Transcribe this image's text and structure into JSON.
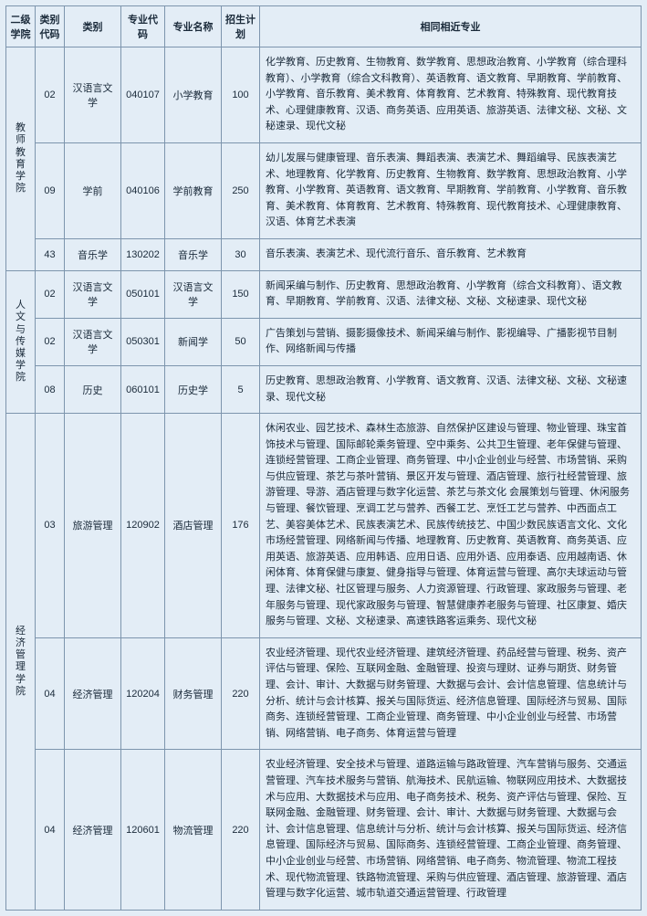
{
  "headers": {
    "school": "二级学院",
    "type_code": "类别代码",
    "type": "类别",
    "major_code": "专业代码",
    "major_name": "专业名称",
    "plan": "招生计划",
    "related": "相同相近专业"
  },
  "schools": [
    {
      "name": "教师教育学院",
      "rows": [
        {
          "type_code": "02",
          "type": "汉语言文学",
          "major_code": "040107",
          "major_name": "小学教育",
          "plan": "100",
          "related": "化学教育、历史教育、生物教育、数学教育、思想政治教育、小学教育（综合理科教育）、小学教育（综合文科教育）、英语教育、语文教育、早期教育、学前教育、小学教育、音乐教育、美术教育、体育教育、艺术教育、特殊教育、现代教育技术、心理健康教育、汉语、商务英语、应用英语、旅游英语、法律文秘、文秘、文秘速录、现代文秘"
        },
        {
          "type_code": "09",
          "type": "学前",
          "major_code": "040106",
          "major_name": "学前教育",
          "plan": "250",
          "related": "幼儿发展与健康管理、音乐表演、舞蹈表演、表演艺术、舞蹈编导、民族表演艺术、地理教育、化学教育、历史教育、生物教育、数学教育、思想政治教育、小学教育、小学教育、英语教育、语文教育、早期教育、学前教育、小学教育、音乐教育、美术教育、体育教育、艺术教育、特殊教育、现代教育技术、心理健康教育、汉语、体育艺术表演"
        },
        {
          "type_code": "43",
          "type": "音乐学",
          "major_code": "130202",
          "major_name": "音乐学",
          "plan": "30",
          "related": "音乐表演、表演艺术、现代流行音乐、音乐教育、艺术教育"
        }
      ]
    },
    {
      "name": "人文与传媒学院",
      "rows": [
        {
          "type_code": "02",
          "type": "汉语言文学",
          "major_code": "050101",
          "major_name": "汉语言文学",
          "plan": "150",
          "related": "新闻采编与制作、历史教育、思想政治教育、小学教育（综合文科教育）、语文教育、早期教育、学前教育、汉语、法律文秘、文秘、文秘速录、现代文秘"
        },
        {
          "type_code": "02",
          "type": "汉语言文学",
          "major_code": "050301",
          "major_name": "新闻学",
          "plan": "50",
          "related": "广告策划与营销、摄影摄像技术、新闻采编与制作、影视编导、广播影视节目制作、网络新闻与传播"
        },
        {
          "type_code": "08",
          "type": "历史",
          "major_code": "060101",
          "major_name": "历史学",
          "plan": "5",
          "related": "历史教育、思想政治教育、小学教育、语文教育、汉语、法律文秘、文秘、文秘速录、现代文秘"
        }
      ]
    },
    {
      "name": "经济管理学院",
      "rows": [
        {
          "type_code": "03",
          "type": "旅游管理",
          "major_code": "120902",
          "major_name": "酒店管理",
          "plan": "176",
          "related": "休闲农业、园艺技术、森林生态旅游、自然保护区建设与管理、物业管理、珠宝首饰技术与管理、国际邮轮乘务管理、空中乘务、公共卫生管理、老年保健与管理、连锁经营管理、工商企业管理、商务管理、中小企业创业与经营、市场营销、采购与供应管理、茶艺与茶叶营销、景区开发与管理、酒店管理、旅行社经营管理、旅游管理、导游、酒店管理与数字化运营、茶艺与茶文化\n会展策划与管理、休闲服务与管理、餐饮管理、烹调工艺与营养、西餐工艺、烹饪工艺与营养、中西面点工艺、美容美体艺术、民族表演艺术、民族传统技艺、中国少数民族语言文化、文化市场经营管理、网络新闻与传播、地理教育、历史教育、英语教育、商务英语、应用英语、旅游英语、应用韩语、应用日语、应用外语、应用泰语、应用越南语、休闲体育、体育保健与康复、健身指导与管理、体育运营与管理、高尔夫球运动与管理、法律文秘、社区管理与服务、人力资源管理、行政管理、家政服务与管理、老年服务与管理、现代家政服务与管理、智慧健康养老服务与管理、社区康复、婚庆服务与管理、文秘、文秘速录、高速铁路客运乘务、现代文秘"
        },
        {
          "type_code": "04",
          "type": "经济管理",
          "major_code": "120204",
          "major_name": "财务管理",
          "plan": "220",
          "related": "农业经济管理、现代农业经济管理、建筑经济管理、药品经营与管理、税务、资产评估与管理、保险、互联网金融、金融管理、投资与理财、证券与期货、财务管理、会计、审计、大数据与财务管理、大数据与会计、会计信息管理、信息统计与分析、统计与会计核算、报关与国际货运、经济信息管理、国际经济与贸易、国际商务、连锁经营管理、工商企业管理、商务管理、中小企业创业与经营、市场营销、网络营销、电子商务、体育运营与管理"
        },
        {
          "type_code": "04",
          "type": "经济管理",
          "major_code": "120601",
          "major_name": "物流管理",
          "plan": "220",
          "related": "农业经济管理、安全技术与管理、道路运输与路政管理、汽车营销与服务、交通运营管理、汽车技术服务与营销、航海技术、民航运输、物联网应用技术、大数据技术与应用、大数据技术与应用、电子商务技术、税务、资产评估与管理、保险、互联网金融、金融管理、财务管理、会计、审计、大数据与财务管理、大数据与会计、会计信息管理、信息统计与分析、统计与会计核算、报关与国际货运、经济信息管理、国际经济与贸易、国际商务、连锁经营管理、工商企业管理、商务管理、中小企业创业与经营、市场营销、网络营销、电子商务、物流管理、物流工程技术、现代物流管理、铁路物流管理、采购与供应管理、酒店管理、旅游管理、酒店管理与数字化运营、城市轨道交通运营管理、行政管理"
        }
      ]
    }
  ],
  "styling": {
    "background": "#e3edf6",
    "border_color": "#7d95ad",
    "font_family": "Microsoft YaHei",
    "header_fontsize": 11,
    "cell_fontsize": 11,
    "text_color": "#1a2a3a"
  }
}
